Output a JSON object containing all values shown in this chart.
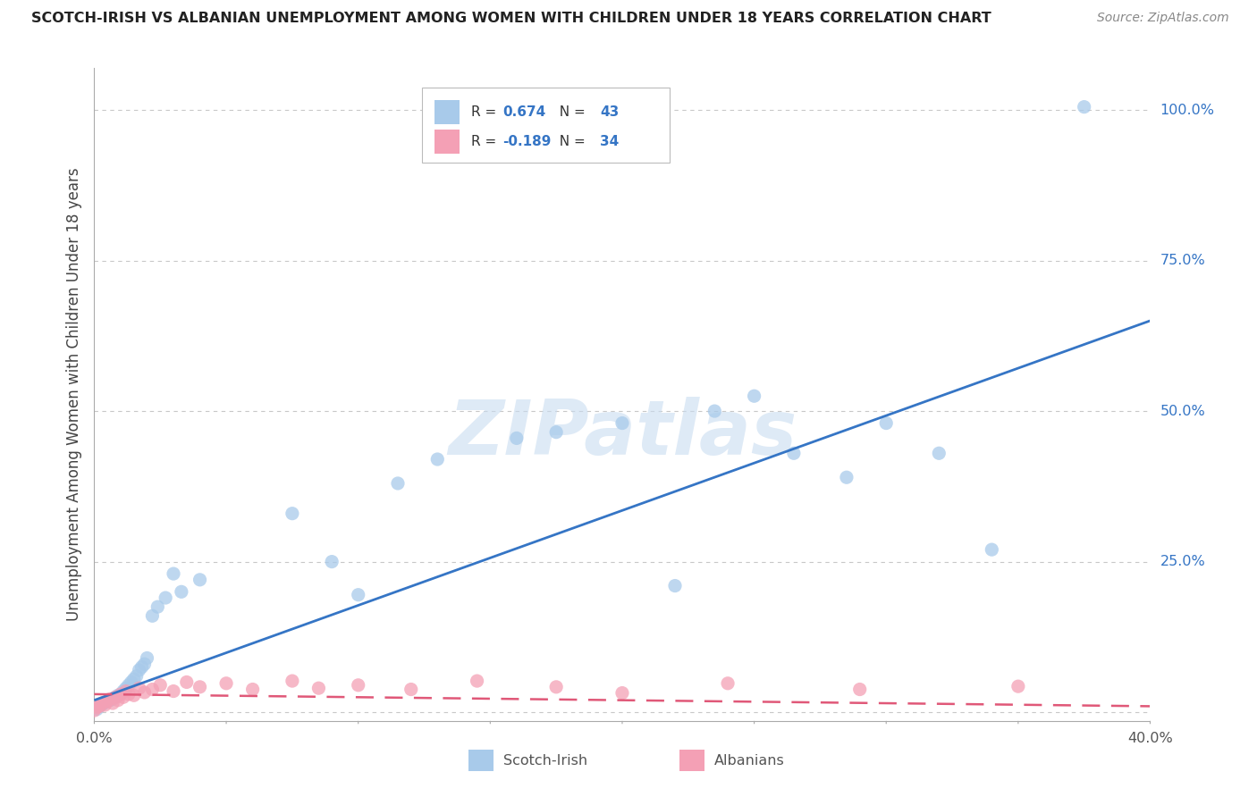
{
  "title": "SCOTCH-IRISH VS ALBANIAN UNEMPLOYMENT AMONG WOMEN WITH CHILDREN UNDER 18 YEARS CORRELATION CHART",
  "source": "Source: ZipAtlas.com",
  "ylabel": "Unemployment Among Women with Children Under 18 years",
  "xlim": [
    0.0,
    0.4
  ],
  "ylim": [
    -0.015,
    1.07
  ],
  "ytick_positions": [
    0.0,
    0.25,
    0.5,
    0.75,
    1.0
  ],
  "ytick_labels": [
    "",
    "25.0%",
    "50.0%",
    "75.0%",
    "100.0%"
  ],
  "xtick_labels": [
    "0.0%",
    "40.0%"
  ],
  "r_scotch": 0.674,
  "n_scotch": 43,
  "r_albanian": -0.189,
  "n_albanian": 34,
  "scotch_color": "#A8CAEA",
  "albanian_color": "#F4A0B5",
  "trend_scotch_color": "#3575C5",
  "trend_albanian_color": "#E05878",
  "legend_scotch": "Scotch-Irish",
  "legend_albanian": "Albanians",
  "watermark": "ZIPatlas",
  "background_color": "#FFFFFF",
  "grid_color": "#C8C8C8",
  "title_color": "#222222",
  "source_color": "#888888",
  "label_color": "#555555",
  "right_label_color": "#3575C5",
  "scotch_x": [
    0.001,
    0.002,
    0.003,
    0.004,
    0.005,
    0.006,
    0.007,
    0.008,
    0.009,
    0.01,
    0.011,
    0.012,
    0.013,
    0.014,
    0.015,
    0.016,
    0.017,
    0.018,
    0.019,
    0.02,
    0.022,
    0.024,
    0.027,
    0.03,
    0.033,
    0.04,
    0.075,
    0.09,
    0.1,
    0.115,
    0.13,
    0.16,
    0.175,
    0.2,
    0.22,
    0.235,
    0.25,
    0.265,
    0.285,
    0.3,
    0.32,
    0.34,
    0.375
  ],
  "scotch_y": [
    0.005,
    0.01,
    0.013,
    0.016,
    0.018,
    0.02,
    0.022,
    0.025,
    0.028,
    0.03,
    0.035,
    0.04,
    0.045,
    0.05,
    0.055,
    0.06,
    0.07,
    0.075,
    0.08,
    0.09,
    0.16,
    0.175,
    0.19,
    0.23,
    0.2,
    0.22,
    0.33,
    0.25,
    0.195,
    0.38,
    0.42,
    0.455,
    0.465,
    0.48,
    0.21,
    0.5,
    0.525,
    0.43,
    0.39,
    0.48,
    0.43,
    0.27,
    1.005
  ],
  "albanian_x": [
    0.0,
    0.001,
    0.002,
    0.003,
    0.004,
    0.005,
    0.006,
    0.007,
    0.008,
    0.009,
    0.01,
    0.011,
    0.012,
    0.013,
    0.015,
    0.017,
    0.019,
    0.022,
    0.025,
    0.03,
    0.035,
    0.04,
    0.05,
    0.06,
    0.075,
    0.085,
    0.1,
    0.12,
    0.145,
    0.175,
    0.2,
    0.24,
    0.29,
    0.35
  ],
  "albanian_y": [
    0.003,
    0.008,
    0.01,
    0.015,
    0.012,
    0.018,
    0.022,
    0.015,
    0.025,
    0.02,
    0.03,
    0.025,
    0.035,
    0.03,
    0.028,
    0.04,
    0.033,
    0.038,
    0.045,
    0.035,
    0.05,
    0.042,
    0.048,
    0.038,
    0.052,
    0.04,
    0.045,
    0.038,
    0.052,
    0.042,
    0.032,
    0.048,
    0.038,
    0.043
  ]
}
